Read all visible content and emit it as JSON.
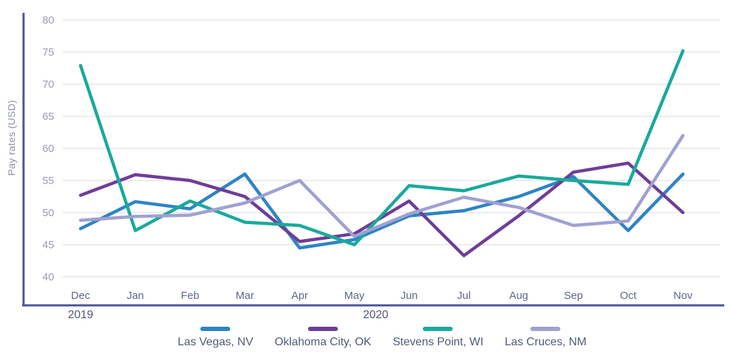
{
  "chart_data": {
    "type": "line",
    "title": "",
    "ylabel": "Pay rates (USD)",
    "xlabel": "",
    "ylim": [
      40,
      80
    ],
    "yticks": [
      40,
      45,
      50,
      55,
      60,
      65,
      70,
      75,
      80
    ],
    "categories": [
      "Dec",
      "Jan",
      "Feb",
      "Mar",
      "Apr",
      "May",
      "Jun",
      "Jul",
      "Aug",
      "Sep",
      "Oct",
      "Nov"
    ],
    "year_labels": [
      {
        "text": "2019"
      },
      {
        "text": "2020"
      }
    ],
    "grid": true,
    "legend_position": "bottom",
    "series": [
      {
        "name": "Las Vegas, NV",
        "color": "#2d84c4",
        "values": [
          47.5,
          51.7,
          50.6,
          56.0,
          44.5,
          45.8,
          49.5,
          50.3,
          52.5,
          55.6,
          47.2,
          56.0
        ]
      },
      {
        "name": "Oklahoma City, OK",
        "color": "#6f3d97",
        "values": [
          52.7,
          55.9,
          55.0,
          52.5,
          45.5,
          46.7,
          51.8,
          43.3,
          49.5,
          56.3,
          57.7,
          50.0
        ]
      },
      {
        "name": "Stevens Point, WI",
        "color": "#1aa99c",
        "values": [
          72.9,
          47.2,
          51.8,
          48.5,
          48.0,
          45.0,
          54.2,
          53.4,
          55.7,
          55.0,
          54.4,
          75.2
        ]
      },
      {
        "name": "Las Cruces, NM",
        "color": "#a0a0d2",
        "values": [
          48.8,
          49.4,
          49.6,
          51.5,
          55.0,
          46.3,
          49.8,
          52.4,
          50.8,
          48.0,
          48.7,
          62.0
        ]
      }
    ],
    "style": {
      "axis_line_color": "#4a549b",
      "grid_color": "#d9d9d9",
      "tick_label_color": "#979db0",
      "month_label_color": "#5c688a",
      "year_label_color": "#4d5977",
      "legend_text_color": "#4d5b78"
    }
  }
}
